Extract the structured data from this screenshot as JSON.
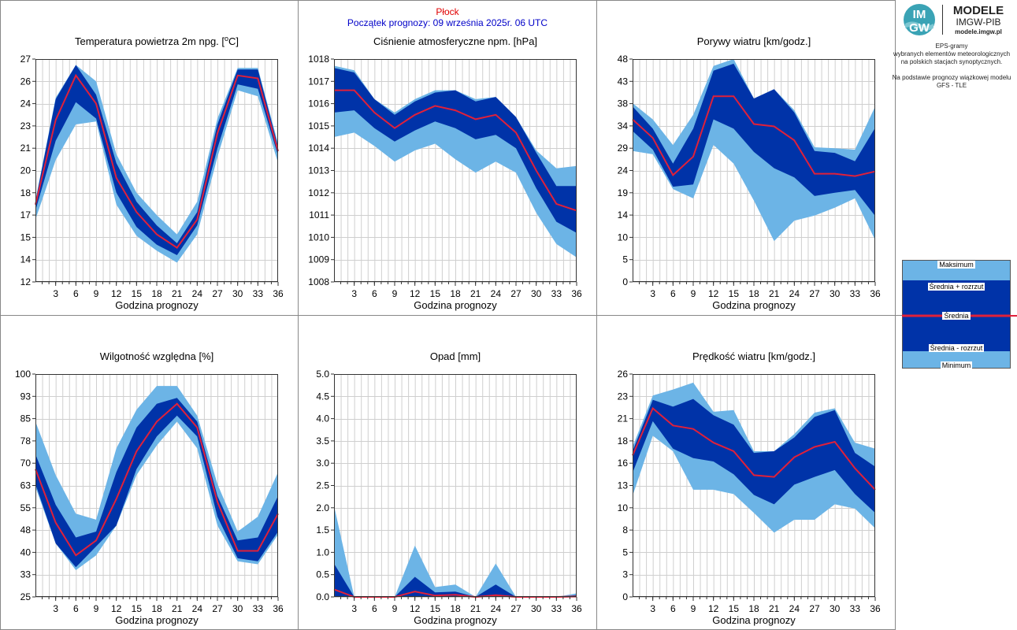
{
  "header": {
    "station": "Płock",
    "start": "Początek prognozy: 09 września 2025r. 06 UTC"
  },
  "logo": {
    "badge_top": "IM",
    "badge_bottom": "GW",
    "title": "MODELE",
    "subtitle": "IMGW-PIB",
    "url": "modele.imgw.pl"
  },
  "info": {
    "line1": "EPS-gramy",
    "line2": "wybranych elementów meteorologicznych",
    "line3": "na polskich stacjach  synoptycznych.",
    "line4": "Na podstawie prognozy wiązkowej modelu",
    "line5": "GFS - TLE"
  },
  "legend": {
    "max": "Maksimum",
    "mean_plus": "Średnia + rozrzut",
    "mean": "Średnia",
    "mean_minus": "Średnia - rozrzut",
    "min": "Minimum"
  },
  "colors": {
    "outer_band": "#6cb4e6",
    "inner_band": "#0033a8",
    "mean_line": "#e0203a",
    "grid": "#cfcfcf"
  },
  "chart_data": [
    {
      "type": "area",
      "title_text": "Temperatura powietrza 2m npg. [",
      "title_sup": "o",
      "title_end": "C]",
      "xlabel": "Godzina prognozy",
      "x": [
        0,
        3,
        6,
        9,
        12,
        15,
        18,
        21,
        24,
        27,
        30,
        33,
        36
      ],
      "xticks": [
        "3",
        "6",
        "9",
        "12",
        "15",
        "18",
        "21",
        "24",
        "27",
        "30",
        "33",
        "36"
      ],
      "ylim": [
        12,
        27
      ],
      "yticks": [
        "27",
        "26",
        "24",
        "23",
        "21",
        "20",
        "18",
        "17",
        "15",
        "14",
        "12"
      ],
      "ytick_values": [
        27,
        25.5,
        24,
        22.5,
        21,
        19.5,
        18,
        16.5,
        15,
        13.5,
        12
      ],
      "min": [
        16.2,
        20.2,
        22.6,
        22.8,
        17.2,
        15.1,
        14.1,
        13.3,
        15.2,
        20.4,
        24.9,
        24.5,
        20.0
      ],
      "mean_minus": [
        16.8,
        21.5,
        24.1,
        23.0,
        18.0,
        15.7,
        14.5,
        13.8,
        15.8,
        21.0,
        25.3,
        25.0,
        20.5
      ],
      "mean": [
        17.2,
        22.9,
        25.9,
        24.0,
        19.0,
        16.7,
        15.2,
        14.3,
        16.2,
        22.0,
        25.9,
        25.7,
        20.8
      ],
      "mean_plus": [
        17.4,
        24.3,
        26.6,
        24.6,
        20.0,
        17.4,
        15.8,
        14.6,
        16.7,
        22.6,
        26.3,
        26.3,
        21.1
      ],
      "max": [
        17.5,
        24.4,
        26.6,
        25.5,
        20.6,
        18.0,
        16.5,
        15.2,
        17.4,
        23.0,
        26.4,
        26.4,
        21.3
      ],
      "grid": true
    },
    {
      "type": "area",
      "title_text": "Ciśnienie atmosferyczne npm. [hPa]",
      "xlabel": "Godzina prognozy",
      "x": [
        0,
        3,
        6,
        9,
        12,
        15,
        18,
        21,
        24,
        27,
        30,
        33,
        36
      ],
      "xticks": [
        "3",
        "6",
        "9",
        "12",
        "15",
        "18",
        "21",
        "24",
        "27",
        "30",
        "33",
        "36"
      ],
      "ylim": [
        1008,
        1018
      ],
      "yticks": [
        "1018",
        "1017",
        "1016",
        "1015",
        "1014",
        "1013",
        "1012",
        "1011",
        "1010",
        "1009",
        "1008"
      ],
      "ytick_values": [
        1018,
        1017,
        1016,
        1015,
        1014,
        1013,
        1012,
        1011,
        1010,
        1009,
        1008
      ],
      "min": [
        1014.5,
        1014.7,
        1014.1,
        1013.4,
        1013.9,
        1014.2,
        1013.5,
        1012.9,
        1013.4,
        1012.9,
        1011.1,
        1009.7,
        1009.1
      ],
      "mean_minus": [
        1015.6,
        1015.7,
        1014.9,
        1014.3,
        1014.8,
        1015.2,
        1014.9,
        1014.4,
        1014.6,
        1014.0,
        1012.2,
        1010.7,
        1010.2
      ],
      "mean": [
        1016.6,
        1016.6,
        1015.6,
        1014.9,
        1015.5,
        1015.9,
        1015.7,
        1015.3,
        1015.5,
        1014.7,
        1013.0,
        1011.5,
        1011.2
      ],
      "mean_plus": [
        1017.6,
        1017.4,
        1016.2,
        1015.5,
        1016.1,
        1016.5,
        1016.6,
        1016.1,
        1016.3,
        1015.4,
        1013.8,
        1012.3,
        1012.3
      ],
      "max": [
        1017.7,
        1017.5,
        1016.2,
        1015.6,
        1016.2,
        1016.6,
        1016.6,
        1016.2,
        1016.3,
        1015.4,
        1013.9,
        1013.1,
        1013.2
      ],
      "grid": true
    },
    {
      "type": "area",
      "title_text": "Porywy wiatru [km/godz.]",
      "xlabel": "Godzina prognozy",
      "x": [
        0,
        3,
        6,
        9,
        12,
        15,
        18,
        21,
        24,
        27,
        30,
        33,
        36
      ],
      "xticks": [
        "3",
        "6",
        "9",
        "12",
        "15",
        "18",
        "21",
        "24",
        "27",
        "30",
        "33",
        "36"
      ],
      "ylim": [
        0,
        48
      ],
      "yticks": [
        "48",
        "43",
        "38",
        "34",
        "29",
        "24",
        "19",
        "14",
        "10",
        "5",
        "0"
      ],
      "ytick_values": [
        48,
        43.2,
        38.4,
        33.6,
        28.8,
        24,
        19.2,
        14.4,
        9.6,
        4.8,
        0
      ],
      "min": [
        28.2,
        27.5,
        20.0,
        18.0,
        29.5,
        25.5,
        17.5,
        8.8,
        13.2,
        14.3,
        16.0,
        18.0,
        9.0
      ],
      "mean_minus": [
        32.5,
        28.5,
        20.5,
        21.0,
        35.0,
        33.0,
        28.0,
        24.5,
        22.5,
        18.5,
        19.2,
        19.8,
        14.2
      ],
      "mean": [
        35.0,
        31.0,
        23.0,
        27.0,
        40.0,
        40.0,
        34.0,
        33.5,
        30.5,
        23.3,
        23.3,
        22.8,
        23.8
      ],
      "mean_plus": [
        37.8,
        33.0,
        25.5,
        33.0,
        45.5,
        47.0,
        39.5,
        41.5,
        36.5,
        28.2,
        27.8,
        26.0,
        33.2
      ],
      "max": [
        38.5,
        35.0,
        29.5,
        36.0,
        46.5,
        48.0,
        39.5,
        41.5,
        37.0,
        29.0,
        28.8,
        28.5,
        37.8
      ],
      "grid": true
    },
    {
      "type": "area",
      "title_text": "Wilgotność względna [%]",
      "xlabel": "Godzina prognozy",
      "x": [
        0,
        3,
        6,
        9,
        12,
        15,
        18,
        21,
        24,
        27,
        30,
        33,
        36
      ],
      "xticks": [
        "3",
        "6",
        "9",
        "12",
        "15",
        "18",
        "21",
        "24",
        "27",
        "30",
        "33",
        "36"
      ],
      "ylim": [
        25,
        100
      ],
      "yticks": [
        "100",
        "93",
        "85",
        "78",
        "70",
        "63",
        "55",
        "48",
        "40",
        "33",
        "25"
      ],
      "ytick_values": [
        100,
        92.5,
        85,
        77.5,
        70,
        62.5,
        55,
        47.5,
        40,
        32.5,
        25
      ],
      "min": [
        62.0,
        43.0,
        34.0,
        39.0,
        49.0,
        66.0,
        76.0,
        84.0,
        75.0,
        49.0,
        37.0,
        36.0,
        46.0
      ],
      "mean_minus": [
        63.0,
        43.0,
        35.0,
        42.0,
        49.0,
        68.0,
        79.0,
        86.0,
        79.0,
        52.0,
        38.0,
        37.0,
        47.0
      ],
      "mean": [
        68.0,
        50.0,
        39.0,
        44.0,
        58.0,
        74.0,
        84.0,
        90.0,
        82.0,
        57.0,
        40.5,
        40.5,
        53.0
      ],
      "mean_plus": [
        73.0,
        56.0,
        45.0,
        47.0,
        67.0,
        82.0,
        90.0,
        92.0,
        84.0,
        59.0,
        44.0,
        45.0,
        59.0
      ],
      "max": [
        84.0,
        66.0,
        53.0,
        51.0,
        75.0,
        88.0,
        96.0,
        96.0,
        86.0,
        63.0,
        47.0,
        52.0,
        67.0
      ],
      "grid": true
    },
    {
      "type": "area",
      "title_text": "Opad [mm]",
      "xlabel": "Godzina prognozy",
      "x": [
        0,
        3,
        6,
        9,
        12,
        15,
        18,
        21,
        24,
        27,
        30,
        33,
        36
      ],
      "xticks": [
        "3",
        "6",
        "9",
        "12",
        "15",
        "18",
        "21",
        "24",
        "27",
        "30",
        "33",
        "36"
      ],
      "ylim": [
        0,
        5
      ],
      "yticks": [
        "5.0",
        "4.5",
        "4.0",
        "3.5",
        "3.0",
        "2.5",
        "2.0",
        "1.5",
        "1.0",
        "0.5",
        "0.0"
      ],
      "ytick_values": [
        5,
        4.5,
        4,
        3.5,
        3,
        2.5,
        2,
        1.5,
        1,
        0.5,
        0
      ],
      "min": [
        0,
        0,
        0,
        0,
        0,
        0,
        0,
        0,
        0,
        0,
        0,
        0,
        0
      ],
      "mean_minus": [
        0,
        0,
        0,
        0,
        0,
        0,
        0,
        0,
        0,
        0,
        0,
        0,
        0
      ],
      "mean": [
        0.17,
        0,
        0,
        0,
        0.12,
        0.03,
        0.05,
        0,
        0.04,
        0,
        0,
        0,
        0.01
      ],
      "mean_plus": [
        0.75,
        0,
        0,
        0,
        0.45,
        0.1,
        0.12,
        0,
        0.28,
        0,
        0,
        0,
        0.04
      ],
      "max": [
        2.05,
        0,
        0,
        0,
        1.15,
        0.22,
        0.28,
        0,
        0.75,
        0,
        0,
        0,
        0.08
      ],
      "grid": true
    },
    {
      "type": "area",
      "title_text": "Prędkość wiatru [km/godz.]",
      "xlabel": "Godzina prognozy",
      "x": [
        0,
        3,
        6,
        9,
        12,
        15,
        18,
        21,
        24,
        27,
        30,
        33,
        36
      ],
      "xticks": [
        "3",
        "6",
        "9",
        "12",
        "15",
        "18",
        "21",
        "24",
        "27",
        "30",
        "33",
        "36"
      ],
      "ylim": [
        0,
        26
      ],
      "yticks": [
        "26",
        "23",
        "21",
        "18",
        "16",
        "13",
        "10",
        "8",
        "5",
        "3",
        "0"
      ],
      "ytick_values": [
        26,
        23.4,
        20.8,
        18.2,
        15.6,
        13,
        10.4,
        7.8,
        5.2,
        2.6,
        0
      ],
      "min": [
        11.8,
        18.8,
        17.0,
        12.5,
        12.5,
        12.0,
        9.8,
        7.5,
        9.0,
        9.0,
        10.8,
        10.3,
        8.0
      ],
      "mean_minus": [
        14.5,
        20.5,
        17.3,
        16.2,
        15.8,
        14.3,
        11.9,
        10.8,
        13.1,
        14.0,
        14.8,
        12.0,
        9.8
      ],
      "mean": [
        16.5,
        22.0,
        20.0,
        19.6,
        18.0,
        17.0,
        14.2,
        14.0,
        16.3,
        17.5,
        18.1,
        15.0,
        12.5
      ],
      "mean_plus": [
        17.0,
        23.0,
        22.2,
        23.1,
        21.2,
        20.1,
        16.8,
        17.0,
        18.6,
        21.0,
        21.8,
        16.8,
        15.2
      ],
      "max": [
        17.5,
        23.5,
        24.2,
        25.0,
        21.6,
        21.8,
        17.0,
        17.0,
        19.0,
        21.5,
        22.0,
        18.0,
        17.3
      ],
      "grid": true
    }
  ]
}
